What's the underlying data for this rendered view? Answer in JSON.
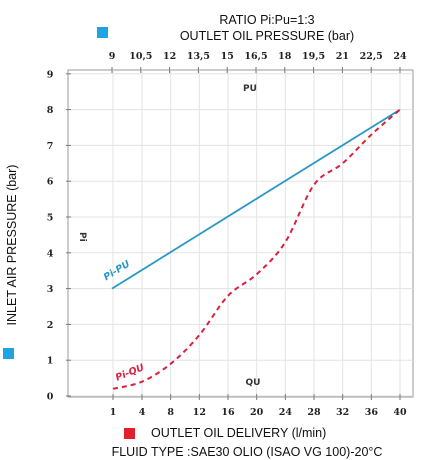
{
  "header": {
    "ratio": "RATIO Pi:Pu=1:3",
    "top_axis_title": "OUTLET OIL PRESSURE (bar)"
  },
  "footer": {
    "bottom_axis_title": "OUTLET OIL DELIVERY (l/min)",
    "fluid_note": "FLUID TYPE :SAE30 OLIO (ISAO VG 100)-20°C"
  },
  "colors": {
    "pressure": "#2a98c7",
    "delivery": "#dd1f3c",
    "legend_blue": "#1ea3e3",
    "legend_red": "#e0202b",
    "grid": "#e3e3e3",
    "frame": "#9a9a9a"
  },
  "chart_data": {
    "type": "line",
    "ylabel": "INLET AIR PRESSURE (bar)",
    "ylim": [
      0,
      9
    ],
    "y_ticks": [
      "0",
      "1",
      "2",
      "3",
      "4",
      "5",
      "6",
      "7",
      "8",
      "9"
    ],
    "x_bottom_label": "OUTLET OIL DELIVERY (l/min)",
    "x_bottom_ticks": [
      "1",
      "4",
      "8",
      "12",
      "16",
      "20",
      "24",
      "28",
      "32",
      "36",
      "40"
    ],
    "x_top_label": "OUTLET OIL PRESSURE (bar)",
    "x_top_ticks": [
      "9",
      "10,5",
      "12",
      "13,5",
      "15",
      "16,5",
      "18",
      "19,5",
      "21",
      "22,5",
      "24"
    ],
    "grid": true,
    "annotations": {
      "pu": "PU",
      "qu": "QU",
      "pi": "Pi"
    },
    "series": [
      {
        "name": "Pi-PU",
        "style": "solid",
        "x_axis": "top",
        "points": [
          [
            9,
            3.0
          ],
          [
            24,
            8.0
          ]
        ]
      },
      {
        "name": "Pi-QU",
        "style": "dashed",
        "x_axis": "bottom",
        "points": [
          [
            1,
            0.2
          ],
          [
            4,
            0.4
          ],
          [
            8,
            0.9
          ],
          [
            12,
            1.7
          ],
          [
            16,
            2.8
          ],
          [
            20,
            3.4
          ],
          [
            24,
            4.3
          ],
          [
            28,
            5.9
          ],
          [
            32,
            6.5
          ],
          [
            36,
            7.3
          ],
          [
            40,
            8.0
          ]
        ]
      }
    ]
  }
}
